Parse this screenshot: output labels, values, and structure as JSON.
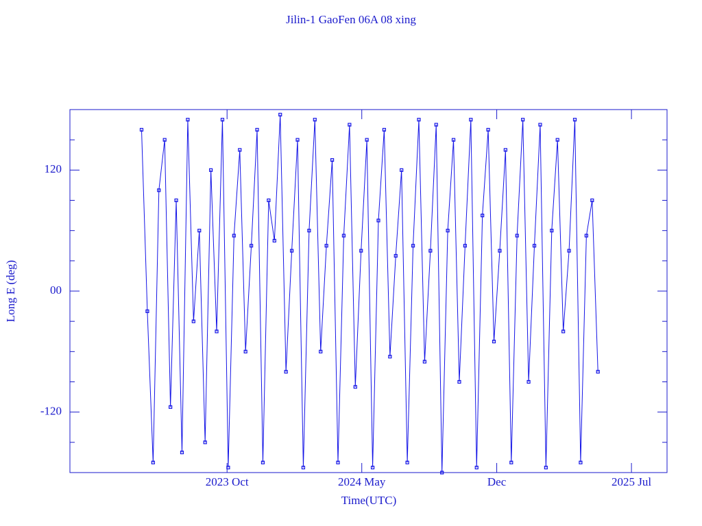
{
  "chart_data": {
    "type": "line",
    "title": "Jilin-1 GaoFen 06A 08 xing",
    "x_label": "Time(UTC)",
    "y_label": "Long E (deg)",
    "color": "#1414e6",
    "markers": true,
    "xlim": [
      2023.07,
      2025.654
    ],
    "xticks": [
      {
        "value": 2023.75,
        "label": "2023 Oct"
      },
      {
        "value": 2024.333,
        "label": "2024 May"
      },
      {
        "value": 2024.917,
        "label": "Dec"
      },
      {
        "value": 2025.5,
        "label": "2025 Jul"
      }
    ],
    "ylim": [
      -180,
      180
    ],
    "yticks": [
      -120,
      {
        "value": 0,
        "label": "00"
      },
      120
    ],
    "yminorticks": [
      -150,
      -90,
      -60,
      -30,
      30,
      60,
      90,
      150
    ],
    "x": [
      2023.38,
      2023.405,
      2023.43,
      2023.455,
      2023.48,
      2023.505,
      2023.53,
      2023.555,
      2023.58,
      2023.605,
      2023.63,
      2023.655,
      2023.68,
      2023.705,
      2023.73,
      2023.755,
      2023.78,
      2023.805,
      2023.83,
      2023.855,
      2023.88,
      2023.905,
      2023.93,
      2023.955,
      2023.98,
      2024.005,
      2024.03,
      2024.055,
      2024.08,
      2024.105,
      2024.13,
      2024.155,
      2024.18,
      2024.205,
      2024.23,
      2024.255,
      2024.28,
      2024.305,
      2024.33,
      2024.355,
      2024.38,
      2024.405,
      2024.43,
      2024.455,
      2024.48,
      2024.505,
      2024.53,
      2024.555,
      2024.58,
      2024.605,
      2024.63,
      2024.655,
      2024.68,
      2024.705,
      2024.73,
      2024.755,
      2024.78,
      2024.805,
      2024.83,
      2024.855,
      2024.88,
      2024.905,
      2024.93,
      2024.955,
      2024.98,
      2025.005,
      2025.03,
      2025.055,
      2025.08,
      2025.105,
      2025.13,
      2025.155,
      2025.18,
      2025.205,
      2025.23,
      2025.255,
      2025.28,
      2025.305,
      2025.33,
      2025.355
    ],
    "values": [
      160,
      -20,
      -170,
      100,
      150,
      -115,
      90,
      -160,
      170,
      -30,
      60,
      -150,
      120,
      -40,
      170,
      -175,
      55,
      140,
      -60,
      45,
      160,
      -170,
      90,
      50,
      175,
      -80,
      40,
      150,
      -175,
      60,
      170,
      -60,
      45,
      130,
      -170,
      55,
      165,
      -95,
      40,
      150,
      -175,
      70,
      160,
      -65,
      35,
      120,
      -170,
      45,
      170,
      -70,
      40,
      165,
      -180,
      60,
      150,
      -90,
      45,
      170,
      -175,
      75,
      160,
      -50,
      40,
      140,
      -170,
      55,
      170,
      -90,
      45,
      165,
      -175,
      60,
      150,
      -40,
      40,
      170,
      -170,
      55,
      90,
      -80
    ]
  }
}
